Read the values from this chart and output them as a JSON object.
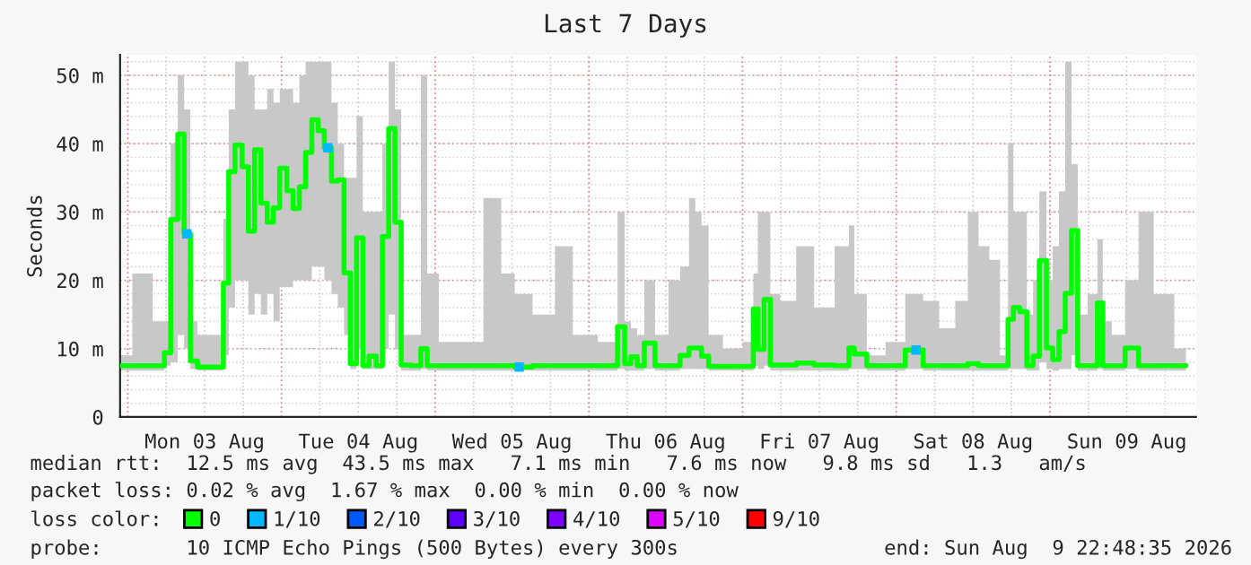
{
  "chart_data": {
    "type": "line",
    "title": "Last 7 Days",
    "ylabel": "Seconds",
    "xlim": [
      "2026-08-02T22:48",
      "2026-08-09T22:48"
    ],
    "xticks": [
      {
        "value": "2026-08-03T00:00",
        "label": null
      },
      {
        "value": "2026-08-03T12:00",
        "label": "Mon 03 Aug"
      },
      {
        "value": "2026-08-04T00:00",
        "label": null
      },
      {
        "value": "2026-08-04T12:00",
        "label": "Tue 04 Aug"
      },
      {
        "value": "2026-08-05T00:00",
        "label": null
      },
      {
        "value": "2026-08-05T12:00",
        "label": "Wed 05 Aug"
      },
      {
        "value": "2026-08-06T00:00",
        "label": null
      },
      {
        "value": "2026-08-06T12:00",
        "label": "Thu 06 Aug"
      },
      {
        "value": "2026-08-07T00:00",
        "label": null
      },
      {
        "value": "2026-08-07T12:00",
        "label": "Fri 07 Aug"
      },
      {
        "value": "2026-08-08T00:00",
        "label": null
      },
      {
        "value": "2026-08-08T12:00",
        "label": "Sat 08 Aug"
      },
      {
        "value": "2026-08-09T00:00",
        "label": null
      },
      {
        "value": "2026-08-09T12:00",
        "label": "Sun 09 Aug"
      }
    ],
    "ylim": [
      0,
      53
    ],
    "yticks": [
      0,
      {
        "value": 10,
        "label": "10 m"
      },
      {
        "value": 20,
        "label": "20 m"
      },
      {
        "value": 30,
        "label": "30 m"
      },
      {
        "value": 40,
        "label": "40 m"
      },
      {
        "value": 50,
        "label": "50 m"
      }
    ],
    "grid": true,
    "legend": "bottom",
    "legend_title": "loss color:",
    "series": [
      {
        "name": "0",
        "type": "step",
        "color": "#00ff00",
        "x": [
          "2026-08-02T22:55",
          "2026-08-03T02:30",
          "2026-08-03T05:18",
          "2026-08-03T06:08",
          "2026-08-03T07:15",
          "2026-08-03T08:22",
          "2026-08-03T09:13",
          "2026-08-03T10:20",
          "2026-08-03T11:26",
          "2026-08-03T14:31",
          "2026-08-03T15:21",
          "2026-08-03T16:11",
          "2026-08-03T17:18",
          "2026-08-03T18:25",
          "2026-08-03T19:15",
          "2026-08-03T20:22",
          "2026-08-03T21:13",
          "2026-08-03T22:20",
          "2026-08-03T23:10",
          "2026-08-04T00:17",
          "2026-08-04T01:24",
          "2026-08-04T02:14",
          "2026-08-04T03:21",
          "2026-08-04T04:11",
          "2026-08-04T05:18",
          "2026-08-04T06:08",
          "2026-08-04T07:15",
          "2026-08-04T08:22",
          "2026-08-04T09:13",
          "2026-08-04T10:20",
          "2026-08-04T11:10",
          "2026-08-04T12:17",
          "2026-08-04T13:07",
          "2026-08-04T14:14",
          "2026-08-04T15:21",
          "2026-08-04T16:11",
          "2026-08-04T17:18",
          "2026-08-04T18:08",
          "2026-08-04T19:15",
          "2026-08-04T21:13",
          "2026-08-04T22:20",
          "2026-08-04T23:10",
          "2026-08-05T01:58",
          "2026-08-05T06:09",
          "2026-08-05T08:56",
          "2026-08-05T11:44",
          "2026-08-05T13:07",
          "2026-08-05T17:19",
          "2026-08-05T20:06",
          "2026-08-05T22:53",
          "2026-08-06T03:55",
          "2026-08-06T05:02",
          "2026-08-06T06:09",
          "2026-08-06T06:59",
          "2026-08-06T08:06",
          "2026-08-06T09:13",
          "2026-08-06T11:27",
          "2026-08-06T13:24",
          "2026-08-06T15:05",
          "2026-08-06T16:12",
          "2026-08-06T17:02",
          "2026-08-06T18:09",
          "2026-08-06T19:16",
          "2026-08-06T22:37",
          "2026-08-07T01:24",
          "2026-08-07T01:58",
          "2026-08-07T02:48",
          "2026-08-07T03:55",
          "2026-08-07T04:45",
          "2026-08-07T06:59",
          "2026-08-07T09:47",
          "2026-08-07T12:34",
          "2026-08-07T16:12",
          "2026-08-07T17:02",
          "2026-08-07T17:52",
          "2026-08-07T20:56",
          "2026-08-07T23:44",
          "2026-08-08T03:05",
          "2026-08-08T05:19",
          "2026-08-08T08:06",
          "2026-08-08T10:20",
          "2026-08-08T12:01",
          "2026-08-08T13:41",
          "2026-08-08T15:22",
          "2026-08-08T17:02",
          "2026-08-08T17:53",
          "2026-08-08T18:43",
          "2026-08-08T19:50",
          "2026-08-08T20:57",
          "2026-08-08T21:47",
          "2026-08-08T22:54",
          "2026-08-09T00:01",
          "2026-08-09T00:51",
          "2026-08-09T01:58",
          "2026-08-09T02:49",
          "2026-08-09T03:55",
          "2026-08-09T04:46",
          "2026-08-09T07:00",
          "2026-08-09T07:50",
          "2026-08-09T08:40",
          "2026-08-09T10:37",
          "2026-08-09T12:51",
          "2026-08-09T14:49",
          "2026-08-09T17:36",
          "2026-08-09T21:14"
        ],
        "values": [
          7.5,
          7.5,
          7.5,
          9.4,
          28.9,
          41.4,
          26.8,
          8.2,
          7.3,
          7.3,
          19.6,
          35.9,
          39.8,
          36.6,
          27.2,
          39.1,
          31.3,
          28.5,
          30.6,
          36.4,
          33.1,
          30.5,
          33.7,
          38.7,
          43.5,
          41.9,
          39.4,
          34.5,
          34.7,
          21.1,
          7.8,
          26.2,
          7.5,
          8.9,
          7.5,
          26.4,
          42.2,
          28.5,
          7.6,
          7.5,
          10.0,
          7.5,
          7.5,
          7.5,
          7.5,
          7.5,
          7.3,
          7.5,
          7.5,
          7.5,
          7.5,
          13.2,
          7.8,
          8.8,
          7.5,
          10.8,
          7.5,
          7.5,
          9.0,
          10.1,
          10.1,
          8.9,
          7.4,
          7.4,
          7.4,
          15.8,
          9.9,
          17.2,
          7.6,
          7.6,
          7.9,
          7.6,
          7.5,
          10.1,
          9.2,
          7.5,
          7.5,
          9.8,
          7.5,
          7.5,
          7.5,
          7.8,
          7.5,
          7.5,
          7.5,
          14.3,
          16.0,
          15.4,
          7.5,
          8.9,
          22.9,
          10.1,
          8.4,
          12.5,
          18.1,
          27.3,
          7.5,
          7.5,
          16.7,
          7.5,
          7.5,
          10.1,
          7.5,
          7.5,
          7.5
        ],
        "lower": [
          6.8,
          6.8,
          6.8,
          7.5,
          8,
          12,
          10,
          7,
          6.8,
          6.8,
          9,
          16,
          20,
          20,
          15,
          18,
          15,
          18,
          14,
          19,
          19,
          20,
          20,
          20,
          22,
          22,
          20,
          18,
          16,
          12,
          7,
          10,
          7,
          7,
          7,
          10,
          15,
          10,
          6.8,
          6.8,
          7,
          6.8,
          6.8,
          6.8,
          6.8,
          6.8,
          6.8,
          6.8,
          6.8,
          6.8,
          6.8,
          7,
          6.8,
          6.8,
          6.8,
          7,
          6.8,
          6.8,
          7,
          7,
          7,
          7,
          6.8,
          6.8,
          6.8,
          7.5,
          7,
          7.5,
          6.8,
          6.8,
          6.8,
          6.8,
          6.8,
          7,
          7,
          6.8,
          6.8,
          7,
          6.8,
          6.8,
          6.8,
          6.8,
          6.8,
          6.8,
          6.8,
          7,
          7,
          7,
          6.8,
          6.8,
          8,
          7,
          6.8,
          7,
          7,
          9,
          6.8,
          6.8,
          7,
          6.8,
          6.8,
          7,
          6.8,
          6.8,
          6.8
        ],
        "upper": [
          9,
          21,
          14,
          14,
          40,
          50,
          45,
          14,
          12,
          12,
          29,
          45,
          52,
          52,
          50,
          45,
          45,
          48,
          46,
          48,
          48,
          46,
          50,
          52,
          52,
          52,
          52,
          46,
          40,
          35,
          35,
          44,
          30,
          30,
          30,
          40,
          52,
          45,
          12,
          12,
          50,
          21,
          11,
          11,
          32,
          21,
          18,
          15,
          25,
          12,
          11,
          30,
          14,
          13,
          12,
          20,
          12,
          20,
          22,
          32,
          30,
          28,
          12,
          10,
          11,
          21,
          30,
          30,
          18,
          17,
          25,
          16,
          25,
          28,
          18,
          9,
          11,
          18,
          17,
          13,
          17,
          30,
          25,
          23,
          9,
          40,
          30,
          30,
          15,
          20,
          33,
          20,
          25,
          33,
          52,
          37,
          15,
          18,
          26,
          14,
          12,
          20,
          30,
          18,
          10
        ]
      },
      {
        "name": "1/10",
        "type": "scatter",
        "color": "#00b8ff",
        "x": [
          "2026-08-03T09:13",
          "2026-08-04T07:15",
          "2026-08-05T13:07",
          "2026-08-08T03:05"
        ],
        "values": [
          26.8,
          39.4,
          7.3,
          9.8
        ]
      },
      {
        "name": "2/10",
        "type": "scatter",
        "color": "#0059ff"
      },
      {
        "name": "3/10",
        "type": "scatter",
        "color": "#5e00ff"
      },
      {
        "name": "4/10",
        "type": "scatter",
        "color": "#7e00ff"
      },
      {
        "name": "5/10",
        "type": "scatter",
        "color": "#dd00ff"
      },
      {
        "name": "9/10",
        "type": "scatter",
        "color": "#ff0000"
      }
    ],
    "annotations": [
      "median rtt:  12.5 ms avg  43.5 ms max   7.1 ms min   7.6 ms now   9.8 ms sd   1.3   am/s",
      "packet loss: 0.02 % avg  1.67 % max  0.00 % min  0.00 % now",
      "probe:       10 ICMP Echo Pings (500 Bytes) every 300s",
      "end: Sun Aug  9 22:48:35 2026"
    ]
  }
}
